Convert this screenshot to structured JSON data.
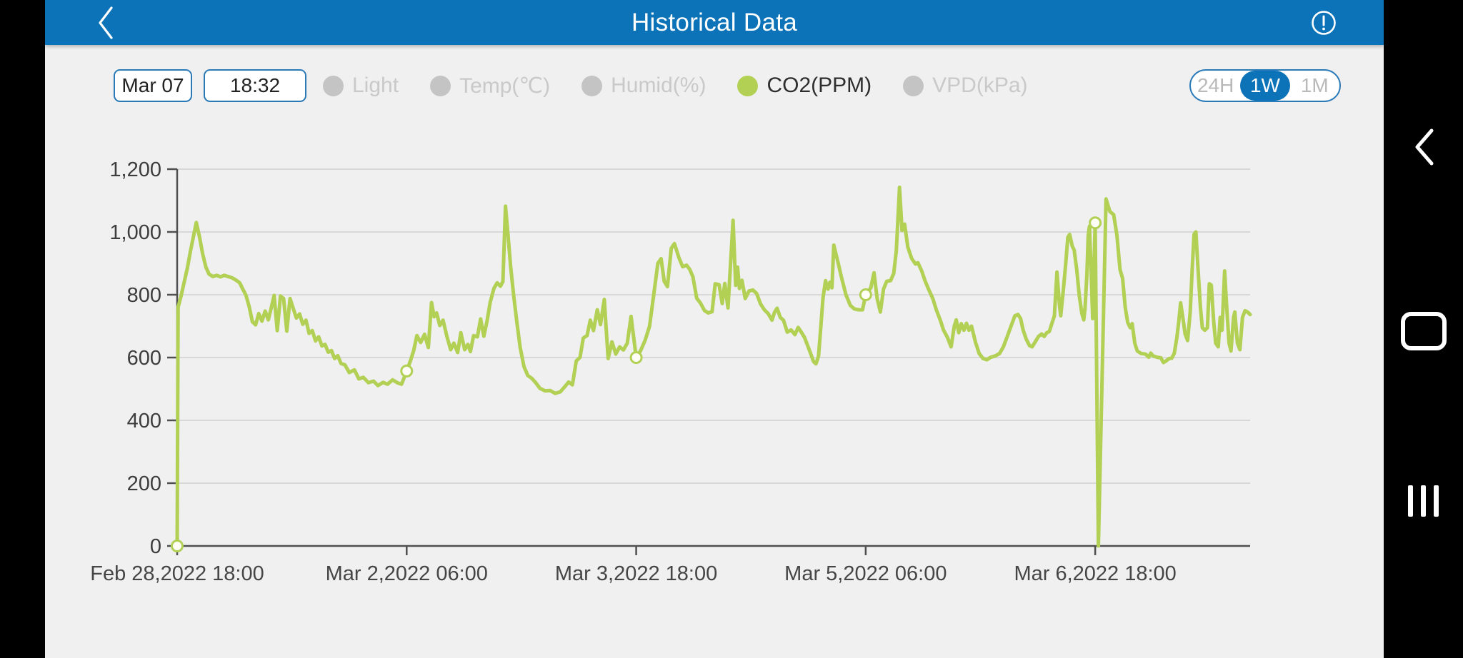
{
  "header": {
    "title": "Historical Data"
  },
  "controls": {
    "date_value": "Mar 07",
    "time_value": "18:32",
    "legend": [
      {
        "label": "Light",
        "active": false
      },
      {
        "label": "Temp(℃)",
        "active": false
      },
      {
        "label": "Humid(%)",
        "active": false
      },
      {
        "label": "CO2(PPM)",
        "active": true
      },
      {
        "label": "VPD(kPa)",
        "active": false
      }
    ],
    "range_options": [
      {
        "label": "24H",
        "selected": false
      },
      {
        "label": "1W",
        "selected": true
      },
      {
        "label": "1M",
        "selected": false
      }
    ]
  },
  "nav_bar": {
    "icons": [
      "back-chevron",
      "home-squircle",
      "recent-apps-bars"
    ]
  },
  "colors": {
    "header_blue": "#0c73b8",
    "accent_blue": "#2b7ab8",
    "series_green": "#b2d054",
    "marker_fill": "#fefef6",
    "inactive_gray": "#c4c4c4",
    "grid_gray": "#d8d8d8",
    "axis_gray": "#4f4f4f",
    "page_bg": "#f0f0f1",
    "nav_black": "#000000"
  },
  "chart_data": {
    "type": "line",
    "series_name": "CO2(PPM)",
    "x_unit": "hours since Feb 28,2022 18:00",
    "ylim": [
      0,
      1200
    ],
    "xlim": [
      0,
      168.3
    ],
    "grid": true,
    "y_ticks": [
      {
        "v": 0,
        "label": "0"
      },
      {
        "v": 200,
        "label": "200"
      },
      {
        "v": 400,
        "label": "400"
      },
      {
        "v": 600,
        "label": "600"
      },
      {
        "v": 800,
        "label": "800"
      },
      {
        "v": 1000,
        "label": "1,000"
      },
      {
        "v": 1200,
        "label": "1,200"
      }
    ],
    "x_ticks": [
      {
        "h": 0,
        "label": "Feb 28,2022 18:00"
      },
      {
        "h": 36,
        "label": "Mar 2,2022 06:00"
      },
      {
        "h": 72,
        "label": "Mar 3,2022 18:00"
      },
      {
        "h": 108,
        "label": "Mar 5,2022 06:00"
      },
      {
        "h": 144,
        "label": "Mar 6,2022 18:00"
      }
    ],
    "marker_hours": [
      0,
      36,
      72,
      108,
      144
    ],
    "points": [
      [
        0,
        0
      ],
      [
        0.15,
        760
      ],
      [
        0.6,
        795
      ],
      [
        1.1,
        840
      ],
      [
        1.6,
        885
      ],
      [
        2.1,
        940
      ],
      [
        2.6,
        990
      ],
      [
        3,
        1030
      ],
      [
        3.5,
        985
      ],
      [
        4,
        930
      ],
      [
        4.5,
        888
      ],
      [
        5,
        866
      ],
      [
        5.6,
        858
      ],
      [
        6.2,
        862
      ],
      [
        6.8,
        857
      ],
      [
        7.4,
        862
      ],
      [
        8,
        858
      ],
      [
        8.6,
        854
      ],
      [
        9.2,
        847
      ],
      [
        9.8,
        838
      ],
      [
        10.3,
        818
      ],
      [
        10.8,
        798
      ],
      [
        11.3,
        762
      ],
      [
        11.8,
        714
      ],
      [
        12.3,
        704
      ],
      [
        12.8,
        740
      ],
      [
        13.3,
        716
      ],
      [
        13.8,
        748
      ],
      [
        14.3,
        720
      ],
      [
        14.8,
        762
      ],
      [
        15.2,
        798
      ],
      [
        15.7,
        686
      ],
      [
        16.2,
        796
      ],
      [
        16.7,
        788
      ],
      [
        17.2,
        684
      ],
      [
        17.7,
        788
      ],
      [
        18.2,
        757
      ],
      [
        18.7,
        726
      ],
      [
        19.2,
        739
      ],
      [
        19.7,
        706
      ],
      [
        20.2,
        719
      ],
      [
        20.7,
        677
      ],
      [
        21.2,
        686
      ],
      [
        21.7,
        653
      ],
      [
        22.2,
        666
      ],
      [
        22.7,
        637
      ],
      [
        23.2,
        642
      ],
      [
        23.7,
        617
      ],
      [
        24.2,
        622
      ],
      [
        24.7,
        597
      ],
      [
        25.2,
        606
      ],
      [
        25.7,
        581
      ],
      [
        26.3,
        577
      ],
      [
        27,
        552
      ],
      [
        27.8,
        561
      ],
      [
        28.5,
        532
      ],
      [
        29.2,
        537
      ],
      [
        30,
        520
      ],
      [
        30.8,
        525
      ],
      [
        31.5,
        511
      ],
      [
        32.3,
        521
      ],
      [
        33,
        515
      ],
      [
        33.8,
        529
      ],
      [
        34.6,
        519
      ],
      [
        35.2,
        515
      ],
      [
        35.7,
        541
      ],
      [
        36,
        557
      ],
      [
        36.6,
        590
      ],
      [
        37.1,
        622
      ],
      [
        37.6,
        670
      ],
      [
        38.2,
        648
      ],
      [
        38.8,
        674
      ],
      [
        39.4,
        632
      ],
      [
        39.9,
        775
      ],
      [
        40.3,
        730
      ],
      [
        40.7,
        742
      ],
      [
        41.2,
        702
      ],
      [
        41.7,
        719
      ],
      [
        42.3,
        668
      ],
      [
        42.9,
        625
      ],
      [
        43.4,
        646
      ],
      [
        44,
        616
      ],
      [
        44.5,
        679
      ],
      [
        45.1,
        625
      ],
      [
        45.6,
        642
      ],
      [
        46,
        619
      ],
      [
        46.5,
        670
      ],
      [
        47.1,
        666
      ],
      [
        47.6,
        723
      ],
      [
        48.1,
        668
      ],
      [
        48.6,
        715
      ],
      [
        49.1,
        776
      ],
      [
        49.7,
        821
      ],
      [
        50.2,
        838
      ],
      [
        50.7,
        827
      ],
      [
        51.1,
        842
      ],
      [
        51.5,
        1082
      ],
      [
        51.9,
        989
      ],
      [
        52.3,
        890
      ],
      [
        52.8,
        795
      ],
      [
        53.3,
        710
      ],
      [
        53.8,
        633
      ],
      [
        54.4,
        571
      ],
      [
        55,
        543
      ],
      [
        55.6,
        534
      ],
      [
        56.2,
        521
      ],
      [
        56.9,
        502
      ],
      [
        57.7,
        494
      ],
      [
        58.5,
        495
      ],
      [
        59.3,
        486
      ],
      [
        60.1,
        491
      ],
      [
        60.8,
        507
      ],
      [
        61.4,
        522
      ],
      [
        62,
        513
      ],
      [
        62.6,
        589
      ],
      [
        63.2,
        601
      ],
      [
        63.7,
        662
      ],
      [
        64.3,
        670
      ],
      [
        64.8,
        719
      ],
      [
        65.3,
        686
      ],
      [
        65.9,
        752
      ],
      [
        66.4,
        705
      ],
      [
        67,
        785
      ],
      [
        67.6,
        597
      ],
      [
        68.2,
        650
      ],
      [
        68.8,
        611
      ],
      [
        69.4,
        634
      ],
      [
        70,
        624
      ],
      [
        70.6,
        646
      ],
      [
        71.2,
        731
      ],
      [
        72,
        600
      ],
      [
        72.7,
        622
      ],
      [
        73.4,
        655
      ],
      [
        74.1,
        700
      ],
      [
        74.8,
        808
      ],
      [
        75.4,
        900
      ],
      [
        75.9,
        915
      ],
      [
        76.4,
        843
      ],
      [
        76.9,
        826
      ],
      [
        77.5,
        948
      ],
      [
        78,
        963
      ],
      [
        78.7,
        918
      ],
      [
        79.3,
        889
      ],
      [
        79.9,
        894
      ],
      [
        80.4,
        881
      ],
      [
        80.9,
        857
      ],
      [
        81.5,
        789
      ],
      [
        82.1,
        773
      ],
      [
        82.7,
        750
      ],
      [
        83.3,
        742
      ],
      [
        83.9,
        746
      ],
      [
        84.4,
        835
      ],
      [
        85,
        832
      ],
      [
        85.5,
        772
      ],
      [
        85.9,
        836
      ],
      [
        86.4,
        758
      ],
      [
        87.2,
        1037
      ],
      [
        87.6,
        830
      ],
      [
        87.9,
        888
      ],
      [
        88.2,
        820
      ],
      [
        88.6,
        846
      ],
      [
        89.1,
        788
      ],
      [
        89.7,
        812
      ],
      [
        90.3,
        815
      ],
      [
        90.9,
        804
      ],
      [
        91.5,
        771
      ],
      [
        92.1,
        752
      ],
      [
        92.7,
        740
      ],
      [
        93.3,
        719
      ],
      [
        93.7,
        744
      ],
      [
        94.1,
        757
      ],
      [
        94.6,
        728
      ],
      [
        95.1,
        719
      ],
      [
        95.7,
        681
      ],
      [
        96.3,
        688
      ],
      [
        96.9,
        673
      ],
      [
        97.4,
        696
      ],
      [
        97.9,
        681
      ],
      [
        98.4,
        664
      ],
      [
        98.9,
        638
      ],
      [
        99.4,
        611
      ],
      [
        99.8,
        588
      ],
      [
        100.2,
        580
      ],
      [
        100.6,
        604
      ],
      [
        100.9,
        682
      ],
      [
        101.3,
        790
      ],
      [
        101.7,
        845
      ],
      [
        102.1,
        818
      ],
      [
        102.4,
        840
      ],
      [
        102.7,
        822
      ],
      [
        103,
        958
      ],
      [
        103.6,
        908
      ],
      [
        104.2,
        856
      ],
      [
        104.9,
        800
      ],
      [
        105.6,
        766
      ],
      [
        106.2,
        755
      ],
      [
        106.9,
        752
      ],
      [
        107.5,
        752
      ],
      [
        108,
        800
      ],
      [
        108.8,
        822
      ],
      [
        109.3,
        870
      ],
      [
        109.8,
        788
      ],
      [
        110.3,
        745
      ],
      [
        110.8,
        818
      ],
      [
        111.3,
        843
      ],
      [
        111.9,
        845
      ],
      [
        112.4,
        868
      ],
      [
        112.8,
        940
      ],
      [
        113.3,
        1142
      ],
      [
        113.7,
        1005
      ],
      [
        114.1,
        1025
      ],
      [
        114.6,
        952
      ],
      [
        115.2,
        916
      ],
      [
        115.8,
        898
      ],
      [
        116.2,
        902
      ],
      [
        116.8,
        875
      ],
      [
        117.3,
        845
      ],
      [
        117.9,
        816
      ],
      [
        118.5,
        789
      ],
      [
        119.1,
        751
      ],
      [
        119.7,
        719
      ],
      [
        120.2,
        688
      ],
      [
        120.8,
        665
      ],
      [
        121.4,
        634
      ],
      [
        121.9,
        700
      ],
      [
        122.2,
        720
      ],
      [
        122.6,
        679
      ],
      [
        123,
        708
      ],
      [
        123.4,
        687
      ],
      [
        123.8,
        709
      ],
      [
        124.2,
        687
      ],
      [
        124.6,
        700
      ],
      [
        125.2,
        650
      ],
      [
        125.8,
        613
      ],
      [
        126.4,
        597
      ],
      [
        127,
        593
      ],
      [
        127.6,
        601
      ],
      [
        128.3,
        605
      ],
      [
        129,
        613
      ],
      [
        129.6,
        634
      ],
      [
        130.2,
        667
      ],
      [
        130.8,
        700
      ],
      [
        131.4,
        733
      ],
      [
        131.9,
        737
      ],
      [
        132.3,
        724
      ],
      [
        132.7,
        687
      ],
      [
        133.2,
        658
      ],
      [
        133.7,
        638
      ],
      [
        134.1,
        634
      ],
      [
        134.6,
        650
      ],
      [
        135.1,
        667
      ],
      [
        135.6,
        675
      ],
      [
        136,
        667
      ],
      [
        136.4,
        679
      ],
      [
        136.8,
        683
      ],
      [
        137.2,
        708
      ],
      [
        137.6,
        733
      ],
      [
        138,
        872
      ],
      [
        138.4,
        765
      ],
      [
        138.6,
        733
      ],
      [
        139,
        815
      ],
      [
        139.4,
        905
      ],
      [
        139.7,
        983
      ],
      [
        140,
        992
      ],
      [
        140.4,
        955
      ],
      [
        140.7,
        942
      ],
      [
        141.1,
        880
      ],
      [
        141.5,
        798
      ],
      [
        141.9,
        741
      ],
      [
        142.2,
        720
      ],
      [
        142.4,
        757
      ],
      [
        142.7,
        864
      ],
      [
        142.9,
        988
      ],
      [
        143.1,
        1018
      ],
      [
        143.4,
        850
      ],
      [
        143.6,
        724
      ],
      [
        144,
        1029
      ],
      [
        144.5,
        0
      ],
      [
        145.7,
        1105
      ],
      [
        146.3,
        1065
      ],
      [
        146.9,
        1055
      ],
      [
        147.4,
        990
      ],
      [
        147.9,
        880
      ],
      [
        148.3,
        852
      ],
      [
        148.7,
        761
      ],
      [
        149.1,
        712
      ],
      [
        149.5,
        695
      ],
      [
        149.8,
        708
      ],
      [
        150.2,
        646
      ],
      [
        150.6,
        621
      ],
      [
        151.2,
        613
      ],
      [
        151.9,
        611
      ],
      [
        152.4,
        601
      ],
      [
        152.7,
        614
      ],
      [
        153.1,
        605
      ],
      [
        153.7,
        601
      ],
      [
        154.3,
        599
      ],
      [
        154.7,
        584
      ],
      [
        155.1,
        589
      ],
      [
        155.6,
        597
      ],
      [
        156,
        598
      ],
      [
        156.4,
        613
      ],
      [
        156.8,
        663
      ],
      [
        157.1,
        712
      ],
      [
        157.4,
        774
      ],
      [
        157.8,
        720
      ],
      [
        158.1,
        675
      ],
      [
        158.5,
        654
      ],
      [
        158.9,
        745
      ],
      [
        159.2,
        876
      ],
      [
        159.5,
        992
      ],
      [
        159.8,
        1000
      ],
      [
        160.1,
        893
      ],
      [
        160.5,
        761
      ],
      [
        160.8,
        695
      ],
      [
        161.2,
        687
      ],
      [
        161.6,
        695
      ],
      [
        161.9,
        835
      ],
      [
        162.2,
        831
      ],
      [
        162.6,
        712
      ],
      [
        162.9,
        646
      ],
      [
        163.3,
        634
      ],
      [
        163.6,
        728
      ],
      [
        163.9,
        687
      ],
      [
        164.3,
        876
      ],
      [
        164.6,
        769
      ],
      [
        165,
        646
      ],
      [
        165.3,
        621
      ],
      [
        165.7,
        728
      ],
      [
        165.9,
        745
      ],
      [
        166.3,
        646
      ],
      [
        166.7,
        625
      ],
      [
        167.1,
        728
      ],
      [
        167.5,
        749
      ],
      [
        167.9,
        745
      ],
      [
        168.3,
        737
      ]
    ]
  }
}
